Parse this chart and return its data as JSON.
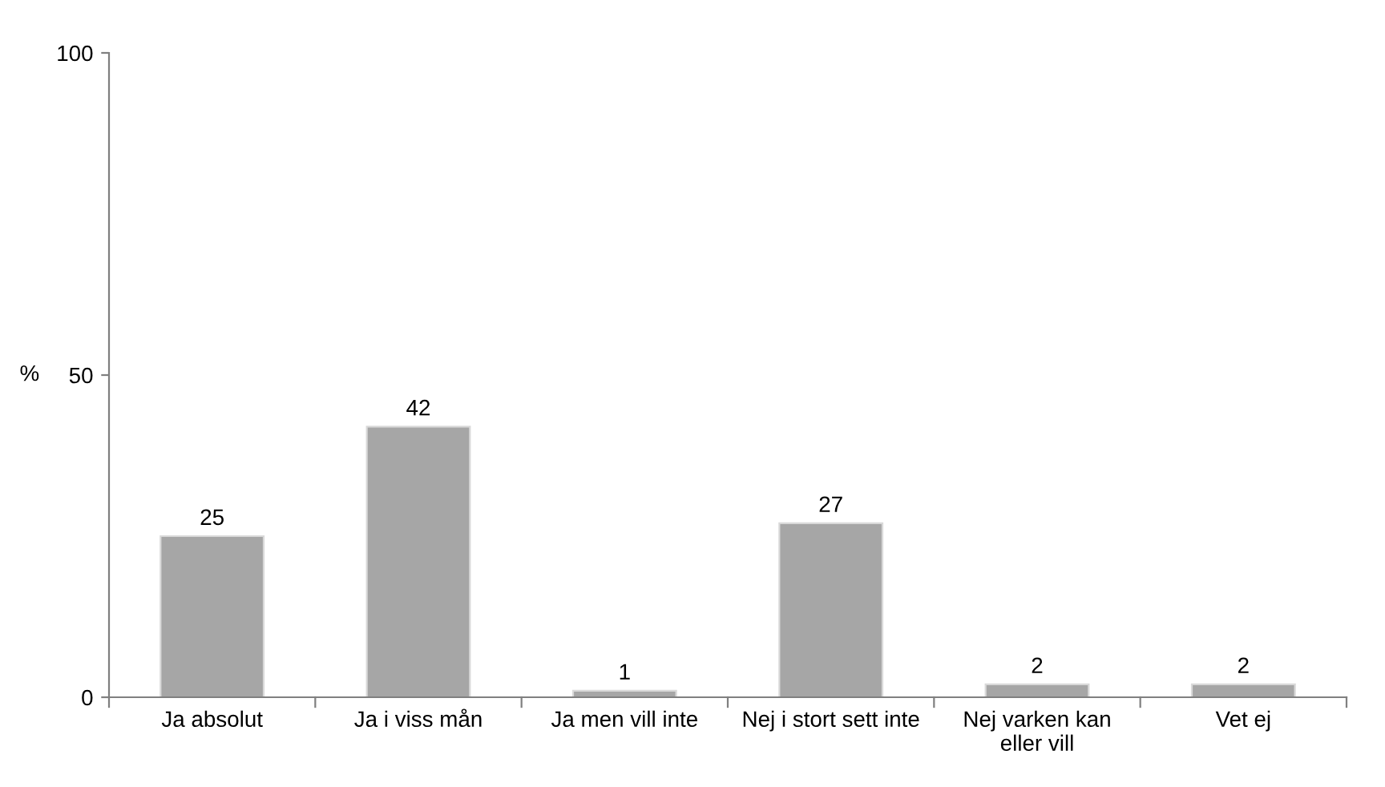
{
  "chart_data": {
    "type": "bar",
    "ylabel": "%",
    "categories": [
      "Ja absolut",
      "Ja i viss mån",
      "Ja men vill inte",
      "Nej i stort sett inte",
      "Nej varken kan\neller vill",
      "Vet ej"
    ],
    "values": [
      25,
      42,
      1,
      27,
      2,
      2
    ],
    "color": "#a6a6a6",
    "ylim": [
      0,
      100
    ],
    "yticks": [
      0,
      50,
      100
    ],
    "grid": false,
    "legend": false,
    "data_labels": true
  }
}
